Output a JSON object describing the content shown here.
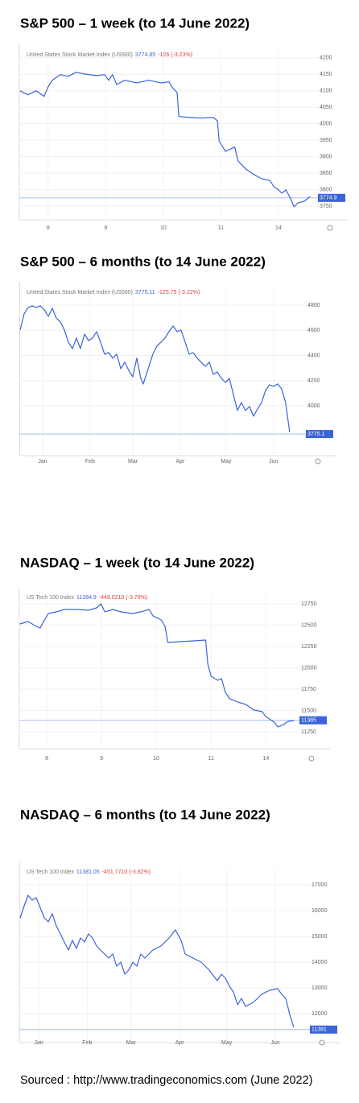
{
  "chart_data": [
    {
      "type": "line",
      "title": "S&P 500 – 1 week (to 14 June 2022)",
      "index_name": "United States Stock Market Index (US500)",
      "last_price": 3774.85,
      "change_label": "-126 (-3.23%)",
      "color": "#3a64d8",
      "grid": true,
      "current_value": 3774.9,
      "x": [
        0.51,
        0.65,
        0.79,
        0.93,
        1.0,
        1.07,
        1.21,
        1.35,
        1.49,
        1.63,
        1.84,
        1.98,
        2.05,
        2.12,
        2.19,
        2.33,
        2.54,
        2.75,
        2.96,
        3.1,
        3.17,
        3.24,
        3.27,
        3.45,
        3.66,
        3.87,
        3.94,
        3.97,
        4.08,
        4.24,
        4.3,
        4.43,
        4.57,
        4.71,
        4.85,
        4.92,
        4.99,
        5.06,
        5.13,
        5.2,
        5.27,
        5.34,
        5.45,
        5.55
      ],
      "values": [
        4100,
        4088,
        4100,
        4083,
        4112,
        4132,
        4149,
        4144,
        4156,
        4151,
        4146,
        4149,
        4132,
        4149,
        4119,
        4132,
        4124,
        4132,
        4124,
        4127,
        4107,
        4095,
        4022,
        4019,
        4017,
        4019,
        4009,
        3948,
        3916,
        3929,
        3887,
        3863,
        3846,
        3833,
        3828,
        3809,
        3801,
        3789,
        3799,
        3777,
        3748,
        3760,
        3765,
        3779
      ],
      "xlim": [
        0.5,
        5.7
      ],
      "xticks": [
        {
          "value": 1,
          "label": "8"
        },
        {
          "value": 2,
          "label": "9"
        },
        {
          "value": 3,
          "label": "10"
        },
        {
          "value": 4,
          "label": "11"
        },
        {
          "value": 5,
          "label": "14"
        }
      ],
      "ylim": [
        3728,
        4224
      ],
      "yticks": [
        3750,
        3800,
        3850,
        3900,
        3950,
        4000,
        4050,
        4100,
        4150,
        4200
      ]
    },
    {
      "type": "line",
      "title": "S&P 500 – 6 months (to 14 June 2022)",
      "index_name": "United States Stock Market Index (US500)",
      "last_price": 3775.11,
      "change_label": "-125.75 (-3.22%)",
      "color": "#3a64d8",
      "grid": true,
      "current_value": 3775.1,
      "x": [
        -13.7,
        -11.1,
        -8.5,
        -5.8,
        -3.2,
        -0.6,
        2.1,
        4.7,
        7.3,
        9.9,
        12.6,
        15.2,
        17.8,
        20.5,
        23.1,
        25.7,
        28.4,
        31.0,
        33.6,
        36.3,
        38.9,
        41.5,
        44.2,
        46.8,
        49.4,
        52.1,
        54.7,
        57.3,
        59.9,
        62.6,
        65.2,
        66.8,
        70.5,
        73.1,
        75.7,
        78.4,
        81.0,
        83.6,
        86.3,
        88.9,
        91.5,
        94.2,
        96.8,
        99.4,
        102.1,
        104.7,
        107.3,
        110.0,
        112.6,
        115.2,
        117.8,
        120.5,
        123.1,
        125.7,
        128.4,
        131.0,
        133.6,
        136.3,
        138.9,
        141.5,
        144.2,
        146.8,
        149.4,
        152.1,
        154.7,
        157.3,
        159.9,
        162.6
      ],
      "values": [
        4602,
        4730,
        4781,
        4794,
        4781,
        4794,
        4762,
        4710,
        4774,
        4698,
        4666,
        4602,
        4506,
        4454,
        4538,
        4454,
        4570,
        4518,
        4538,
        4589,
        4506,
        4410,
        4422,
        4378,
        4410,
        4294,
        4346,
        4282,
        4230,
        4378,
        4218,
        4173,
        4314,
        4410,
        4474,
        4506,
        4538,
        4589,
        4634,
        4589,
        4602,
        4506,
        4410,
        4422,
        4378,
        4346,
        4314,
        4346,
        4250,
        4269,
        4218,
        4186,
        4218,
        4090,
        3962,
        4026,
        3962,
        3994,
        3917,
        3974,
        4026,
        4122,
        4166,
        4154,
        4173,
        4134,
        4026,
        3789
      ],
      "xlim": [
        -14,
        180
      ],
      "xticks": [
        {
          "value": 1,
          "label": "Jan"
        },
        {
          "value": 32,
          "label": "Feb"
        },
        {
          "value": 60,
          "label": "Mar"
        },
        {
          "value": 91,
          "label": "Apr"
        },
        {
          "value": 121,
          "label": "May"
        },
        {
          "value": 152,
          "label": "Jun"
        }
      ],
      "ylim": [
        3654,
        4934
      ],
      "yticks": [
        4000,
        4200,
        4400,
        4600,
        4800
      ]
    },
    {
      "type": "line",
      "title": "NASDAQ – 1 week (to 14 June 2022)",
      "index_name": "US Tech 100 Index",
      "last_price": 11384.9,
      "change_label": "-448.0210 (-3.79%)",
      "color": "#3a64d8",
      "grid": true,
      "current_value": 11385,
      "x": [
        0.51,
        0.66,
        0.81,
        0.88,
        0.96,
        1.03,
        1.18,
        1.32,
        1.54,
        1.76,
        1.91,
        1.99,
        2.06,
        2.21,
        2.35,
        2.57,
        2.72,
        2.87,
        2.94,
        3.09,
        3.16,
        3.21,
        3.46,
        3.68,
        3.9,
        3.94,
        4.0,
        4.12,
        4.19,
        4.26,
        4.34,
        4.49,
        4.63,
        4.78,
        4.93,
        5.0,
        5.15,
        5.22,
        5.32,
        5.41,
        5.51
      ],
      "values": [
        12514,
        12542,
        12486,
        12467,
        12561,
        12637,
        12656,
        12684,
        12684,
        12675,
        12703,
        12750,
        12656,
        12684,
        12656,
        12637,
        12656,
        12684,
        12608,
        12561,
        12486,
        12297,
        12307,
        12316,
        12325,
        12042,
        11901,
        11854,
        11873,
        11712,
        11637,
        11599,
        11571,
        11505,
        11486,
        11429,
        11363,
        11307,
        11335,
        11373,
        11382
      ],
      "xlim": [
        0.5,
        5.7
      ],
      "xticks": [
        {
          "value": 1,
          "label": "8"
        },
        {
          "value": 2,
          "label": "9"
        },
        {
          "value": 3,
          "label": "10"
        },
        {
          "value": 4,
          "label": "11"
        },
        {
          "value": 5,
          "label": "14"
        }
      ],
      "ylim": [
        11127,
        12863
      ],
      "yticks": [
        11250,
        11500,
        11750,
        12000,
        12250,
        12500,
        12750
      ]
    },
    {
      "type": "line",
      "title": "NASDAQ – 6 months (to 14 June 2022)",
      "index_name": "US Tech 100 Index",
      "last_price": 11381.05,
      "change_label": "-451.7710 (-3.82%)",
      "color": "#3a64d8",
      "grid": true,
      "current_value": 11381,
      "x": [
        -10.8,
        -8.2,
        -5.7,
        -3.1,
        -0.5,
        4.6,
        7.2,
        9.7,
        12.3,
        14.9,
        17.4,
        20.0,
        22.6,
        25.1,
        27.7,
        30.3,
        32.8,
        35.4,
        38.0,
        43.1,
        45.7,
        48.3,
        50.8,
        53.4,
        56.0,
        58.5,
        61.1,
        63.7,
        66.2,
        68.8,
        73.9,
        79.1,
        84.2,
        88.3,
        91.9,
        94.5,
        99.6,
        104.7,
        109.9,
        115.0,
        117.6,
        120.2,
        122.7,
        125.3,
        127.9,
        130.4,
        133.0,
        138.1,
        143.3,
        148.4,
        153.5,
        156.1,
        158.7,
        161.2,
        163.8
      ],
      "values": [
        15719,
        16188,
        16594,
        16406,
        16500,
        15719,
        15563,
        15875,
        15406,
        15094,
        14781,
        14469,
        14844,
        14531,
        14938,
        14781,
        15094,
        14938,
        14625,
        14313,
        14156,
        14313,
        13844,
        14000,
        13531,
        13688,
        14000,
        13844,
        14313,
        14156,
        14469,
        14625,
        14938,
        15250,
        14844,
        14313,
        14156,
        14000,
        13688,
        13281,
        13531,
        13375,
        13063,
        12844,
        12344,
        12594,
        12281,
        12438,
        12750,
        12906,
        12969,
        12750,
        12594,
        11969,
        11469
      ],
      "xlim": [
        -11,
        178
      ],
      "xticks": [
        {
          "value": 1,
          "label": "Jan"
        },
        {
          "value": 32,
          "label": "Feb"
        },
        {
          "value": 60,
          "label": "Mar"
        },
        {
          "value": 91,
          "label": "Apr"
        },
        {
          "value": 121,
          "label": "May"
        },
        {
          "value": 152,
          "label": "Jun"
        }
      ],
      "ylim": [
        11125,
        17656
      ],
      "yticks": [
        12000,
        13000,
        14000,
        15000,
        16000,
        17000
      ]
    }
  ],
  "source": "Sourced : http://www.tradingeconomics.com (June 2022)"
}
